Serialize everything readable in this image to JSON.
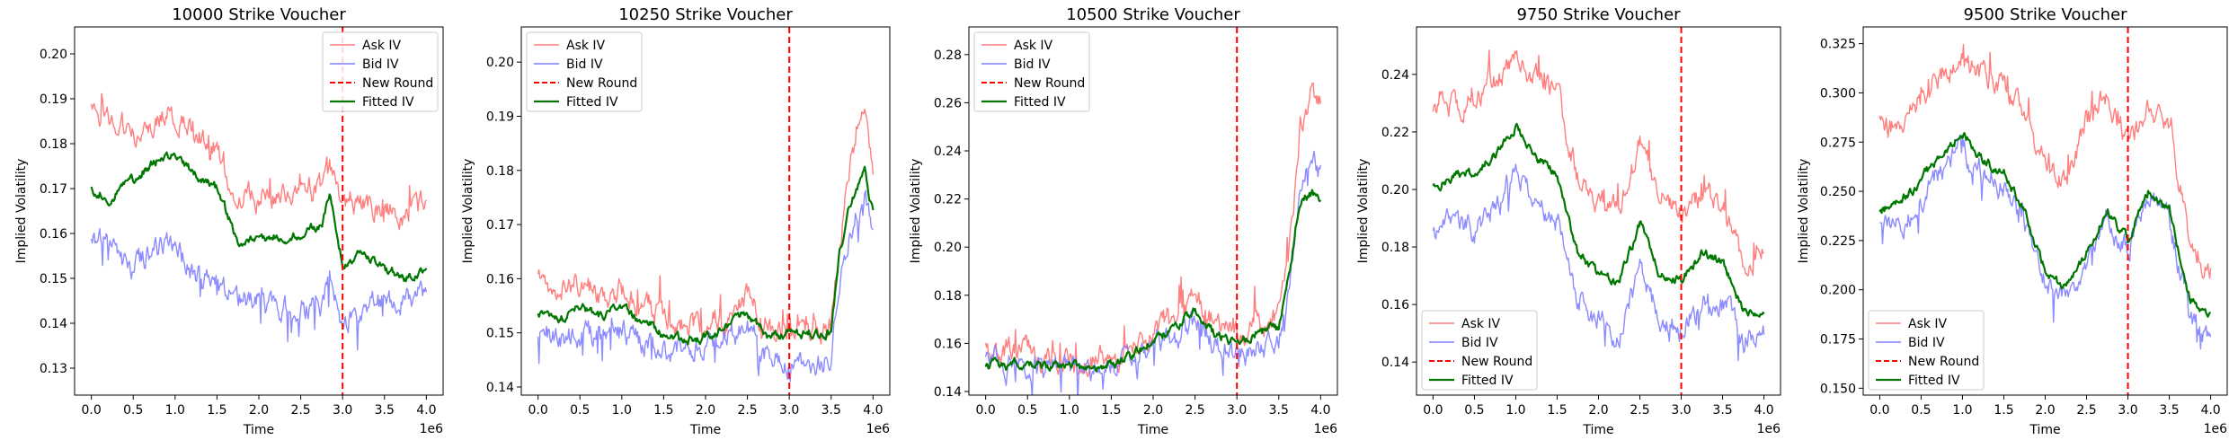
{
  "figure": {
    "colors": {
      "ask": "#ff7f7f",
      "bid": "#7f7fff",
      "overlap": "#8040c8",
      "fitted": "#007700",
      "new_round": "#ff0000"
    }
  },
  "chart_data": [
    {
      "type": "line",
      "title": "10000 Strike Voucher",
      "xlabel": "Time",
      "ylabel": "Implied Volatility",
      "x_offset_label": "1e6",
      "xlim": [
        -0.2,
        4.2
      ],
      "ylim": [
        0.124,
        0.206
      ],
      "xticks": [
        "0.0",
        "0.5",
        "1.0",
        "1.5",
        "2.0",
        "2.5",
        "3.0",
        "3.5",
        "4.0"
      ],
      "yticks": [
        "0.13",
        "0.14",
        "0.15",
        "0.16",
        "0.17",
        "0.18",
        "0.19",
        "0.20"
      ],
      "legend": {
        "position": "top-right",
        "entries": [
          "Ask IV",
          "Bid IV",
          "New Round",
          "Fitted IV"
        ]
      },
      "new_round_x": 3.0,
      "x": [
        0.0,
        0.25,
        0.5,
        0.75,
        1.0,
        1.25,
        1.5,
        1.75,
        2.0,
        2.25,
        2.5,
        2.75,
        2.85,
        3.0,
        3.25,
        3.5,
        3.75,
        4.0
      ],
      "series": [
        {
          "name": "Ask IV",
          "values": [
            0.188,
            0.186,
            0.183,
            0.185,
            0.187,
            0.182,
            0.179,
            0.167,
            0.168,
            0.168,
            0.169,
            0.17,
            0.176,
            0.165,
            0.167,
            0.166,
            0.164,
            0.166
          ]
        },
        {
          "name": "Bid IV",
          "values": [
            0.16,
            0.155,
            0.152,
            0.156,
            0.157,
            0.15,
            0.149,
            0.146,
            0.145,
            0.143,
            0.144,
            0.145,
            0.152,
            0.14,
            0.143,
            0.145,
            0.146,
            0.147
          ]
        },
        {
          "name": "Fitted IV",
          "values": [
            0.17,
            0.168,
            0.172,
            0.176,
            0.178,
            0.173,
            0.17,
            0.158,
            0.16,
            0.159,
            0.16,
            0.162,
            0.17,
            0.153,
            0.156,
            0.152,
            0.15,
            0.151
          ]
        }
      ]
    },
    {
      "type": "line",
      "title": "10250 Strike Voucher",
      "xlabel": "Time",
      "ylabel": "Implied Volatility",
      "x_offset_label": "1e6",
      "xlim": [
        -0.2,
        4.2
      ],
      "ylim": [
        0.1385,
        0.2065
      ],
      "xticks": [
        "0.0",
        "0.5",
        "1.0",
        "1.5",
        "2.0",
        "2.5",
        "3.0",
        "3.5",
        "4.0"
      ],
      "yticks": [
        "0.14",
        "0.15",
        "0.16",
        "0.17",
        "0.18",
        "0.19",
        "0.20"
      ],
      "legend": {
        "position": "top-left",
        "entries": [
          "Ask IV",
          "Bid IV",
          "New Round",
          "Fitted IV"
        ]
      },
      "new_round_x": 3.0,
      "x": [
        0.0,
        0.25,
        0.5,
        0.75,
        1.0,
        1.25,
        1.5,
        1.75,
        2.0,
        2.25,
        2.5,
        2.75,
        3.0,
        3.25,
        3.5,
        3.6,
        3.75,
        3.9,
        4.0
      ],
      "series": [
        {
          "name": "Ask IV",
          "values": [
            0.16,
            0.158,
            0.159,
            0.157,
            0.158,
            0.155,
            0.153,
            0.151,
            0.151,
            0.153,
            0.156,
            0.151,
            0.15,
            0.149,
            0.151,
            0.168,
            0.182,
            0.19,
            0.178
          ]
        },
        {
          "name": "Bid IV",
          "values": [
            0.151,
            0.149,
            0.15,
            0.149,
            0.15,
            0.148,
            0.147,
            0.147,
            0.147,
            0.149,
            0.151,
            0.146,
            0.145,
            0.144,
            0.145,
            0.16,
            0.17,
            0.175,
            0.168
          ]
        },
        {
          "name": "Fitted IV",
          "values": [
            0.154,
            0.152,
            0.155,
            0.153,
            0.155,
            0.152,
            0.15,
            0.149,
            0.149,
            0.151,
            0.154,
            0.149,
            0.15,
            0.15,
            0.15,
            0.165,
            0.175,
            0.18,
            0.172
          ]
        }
      ]
    },
    {
      "type": "line",
      "title": "10500 Strike Voucher",
      "xlabel": "Time",
      "ylabel": "Implied Volatility",
      "x_offset_label": "1e6",
      "xlim": [
        -0.2,
        4.2
      ],
      "ylim": [
        0.1385,
        0.2915
      ],
      "xticks": [
        "0.0",
        "0.5",
        "1.0",
        "1.5",
        "2.0",
        "2.5",
        "3.0",
        "3.5",
        "4.0"
      ],
      "yticks": [
        "0.14",
        "0.16",
        "0.18",
        "0.20",
        "0.22",
        "0.24",
        "0.26",
        "0.28"
      ],
      "legend": {
        "position": "top-left",
        "entries": [
          "Ask IV",
          "Bid IV",
          "New Round",
          "Fitted IV"
        ]
      },
      "new_round_x": 3.0,
      "x": [
        0.0,
        0.25,
        0.5,
        0.75,
        1.0,
        1.25,
        1.5,
        1.75,
        2.0,
        2.25,
        2.5,
        2.75,
        3.0,
        3.25,
        3.5,
        3.65,
        3.75,
        3.9,
        4.0
      ],
      "series": [
        {
          "name": "Ask IV",
          "values": [
            0.158,
            0.156,
            0.157,
            0.153,
            0.152,
            0.152,
            0.154,
            0.158,
            0.165,
            0.172,
            0.18,
            0.168,
            0.164,
            0.168,
            0.17,
            0.205,
            0.25,
            0.265,
            0.26
          ]
        },
        {
          "name": "Bid IV",
          "values": [
            0.152,
            0.151,
            0.151,
            0.149,
            0.149,
            0.149,
            0.15,
            0.152,
            0.158,
            0.162,
            0.168,
            0.158,
            0.154,
            0.158,
            0.16,
            0.19,
            0.225,
            0.235,
            0.232
          ]
        },
        {
          "name": "Fitted IV",
          "values": [
            0.15,
            0.151,
            0.153,
            0.15,
            0.15,
            0.15,
            0.151,
            0.155,
            0.162,
            0.167,
            0.174,
            0.163,
            0.16,
            0.165,
            0.166,
            0.195,
            0.22,
            0.222,
            0.218
          ]
        }
      ]
    },
    {
      "type": "line",
      "title": "9750 Strike Voucher",
      "xlabel": "Time",
      "ylabel": "Implied Volatility",
      "x_offset_label": "1e6",
      "xlim": [
        -0.2,
        4.2
      ],
      "ylim": [
        0.1285,
        0.2565
      ],
      "xticks": [
        "0.0",
        "0.5",
        "1.0",
        "1.5",
        "2.0",
        "2.5",
        "3.0",
        "3.5",
        "4.0"
      ],
      "yticks": [
        "0.14",
        "0.16",
        "0.18",
        "0.20",
        "0.22",
        "0.24"
      ],
      "legend": {
        "position": "bottom-left",
        "entries": [
          "Ask IV",
          "Bid IV",
          "New Round",
          "Fitted IV"
        ]
      },
      "new_round_x": 3.0,
      "x": [
        0.0,
        0.25,
        0.5,
        0.75,
        1.0,
        1.25,
        1.5,
        1.75,
        2.0,
        2.25,
        2.5,
        2.75,
        3.0,
        3.25,
        3.5,
        3.75,
        4.0
      ],
      "series": [
        {
          "name": "Ask IV",
          "values": [
            0.225,
            0.23,
            0.232,
            0.238,
            0.245,
            0.238,
            0.232,
            0.205,
            0.195,
            0.192,
            0.215,
            0.198,
            0.192,
            0.198,
            0.195,
            0.175,
            0.178
          ]
        },
        {
          "name": "Bid IV",
          "values": [
            0.185,
            0.188,
            0.185,
            0.195,
            0.205,
            0.195,
            0.19,
            0.16,
            0.155,
            0.15,
            0.17,
            0.155,
            0.152,
            0.16,
            0.16,
            0.148,
            0.15
          ]
        },
        {
          "name": "Fitted IV",
          "values": [
            0.2,
            0.205,
            0.205,
            0.212,
            0.222,
            0.212,
            0.205,
            0.178,
            0.17,
            0.168,
            0.188,
            0.17,
            0.168,
            0.178,
            0.175,
            0.158,
            0.155
          ]
        }
      ]
    },
    {
      "type": "line",
      "title": "9500 Strike Voucher",
      "xlabel": "Time",
      "ylabel": "Implied Volatility",
      "x_offset_label": "1e6",
      "xlim": [
        -0.2,
        4.2
      ],
      "ylim": [
        0.1465,
        0.3335
      ],
      "xticks": [
        "0.0",
        "0.5",
        "1.0",
        "1.5",
        "2.0",
        "2.5",
        "3.0",
        "3.5",
        "4.0"
      ],
      "yticks": [
        "0.150",
        "0.175",
        "0.200",
        "0.225",
        "0.250",
        "0.275",
        "0.300",
        "0.325"
      ],
      "legend": {
        "position": "bottom-left",
        "entries": [
          "Ask IV",
          "Bid IV",
          "New Round",
          "Fitted IV"
        ]
      },
      "new_round_x": 3.0,
      "x": [
        0.0,
        0.25,
        0.5,
        0.75,
        1.0,
        1.25,
        1.5,
        1.75,
        2.0,
        2.25,
        2.5,
        2.75,
        3.0,
        3.25,
        3.5,
        3.75,
        4.0
      ],
      "series": [
        {
          "name": "Ask IV",
          "values": [
            0.285,
            0.28,
            0.3,
            0.31,
            0.318,
            0.308,
            0.305,
            0.285,
            0.265,
            0.255,
            0.285,
            0.3,
            0.275,
            0.29,
            0.285,
            0.225,
            0.21
          ]
        },
        {
          "name": "Bid IV",
          "values": [
            0.235,
            0.23,
            0.248,
            0.262,
            0.27,
            0.258,
            0.255,
            0.235,
            0.205,
            0.195,
            0.215,
            0.235,
            0.22,
            0.248,
            0.235,
            0.185,
            0.175
          ]
        },
        {
          "name": "Fitted IV",
          "values": [
            0.24,
            0.245,
            0.255,
            0.27,
            0.28,
            0.265,
            0.26,
            0.24,
            0.21,
            0.2,
            0.22,
            0.24,
            0.225,
            0.25,
            0.24,
            0.195,
            0.185
          ]
        }
      ]
    }
  ]
}
